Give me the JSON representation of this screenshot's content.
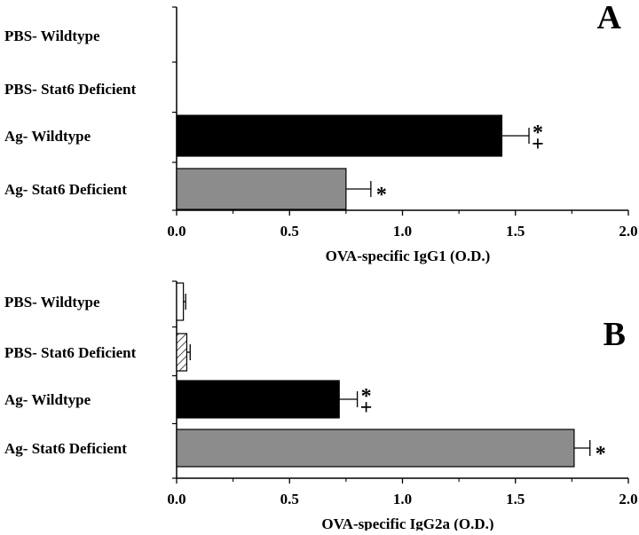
{
  "chart_data": [
    {
      "type": "bar",
      "orientation": "horizontal",
      "panel_label": "A",
      "categories": [
        "PBS- Wildtype",
        "PBS- Stat6 Deficient",
        "Ag- Wildtype",
        "Ag- Stat6 Deficient"
      ],
      "values": [
        0.0,
        0.0,
        1.44,
        0.75
      ],
      "errors": [
        0.0,
        0.0,
        0.12,
        0.11
      ],
      "fills": [
        "none",
        "none",
        "solid-black",
        "solid-gray"
      ],
      "markers": [
        [],
        [],
        [
          "*",
          "+"
        ],
        [
          "*"
        ]
      ],
      "xlabel": "OVA-specific IgG1 (O.D.)",
      "xlim": [
        0,
        2.0
      ],
      "ticks": [
        "0.0",
        "0.5",
        "1.0",
        "1.5",
        "2.0"
      ],
      "tick_values": [
        0,
        0.5,
        1.0,
        1.5,
        2.0
      ]
    },
    {
      "type": "bar",
      "orientation": "horizontal",
      "panel_label": "B",
      "categories": [
        "PBS- Wildtype",
        "PBS- Stat6 Deficient",
        "Ag- Wildtype",
        "Ag- Stat6 Deficient"
      ],
      "values": [
        0.03,
        0.045,
        0.72,
        1.76
      ],
      "errors": [
        0.01,
        0.015,
        0.08,
        0.07
      ],
      "fills": [
        "white",
        "hatched",
        "solid-black",
        "solid-gray"
      ],
      "markers": [
        [],
        [],
        [
          "*",
          "+"
        ],
        [
          "*"
        ]
      ],
      "xlabel": "OVA-specific IgG2a (O.D.)",
      "xlim": [
        0,
        2.0
      ],
      "ticks": [
        "0.0",
        "0.5",
        "1.0",
        "1.5",
        "2.0"
      ],
      "tick_values": [
        0,
        0.5,
        1.0,
        1.5,
        2.0
      ]
    }
  ],
  "colors": {
    "black": "#000000",
    "gray": "#8c8c8c",
    "white": "#ffffff"
  }
}
